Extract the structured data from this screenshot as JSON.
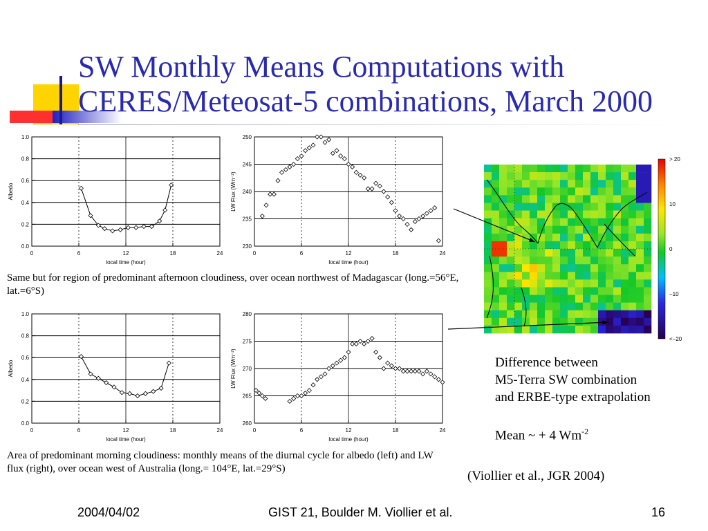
{
  "slide": {
    "title_lines": [
      "SW Monthly Means Computations with",
      "CERES/Meteosat-5 combinations, March 2000"
    ],
    "caption_top": "Same but for region of predominant afternoon cloudiness, over ocean northwest of Madagascar (long.=56°E, lat.=6°S)",
    "caption_bottom": "Area of predominant morning cloudiness: monthly means of the diurnal cycle for albedo (left) and LW flux (right), over ocean west of Australia (long.= 104°E, lat.=29°S)",
    "note_lines": [
      "Difference between",
      "M5-Terra SW combination",
      "and ERBE-type extrapolation"
    ],
    "mean_prefix": "Mean ~ + 4 Wm",
    "mean_exponent": "-2",
    "citation": "(Viollier et al., JGR 2004)",
    "footer": {
      "date": "2004/04/02",
      "center": "GIST 21, Boulder  M. Viollier et  al.",
      "page": "16"
    },
    "colors": {
      "title": "#2a2ab0",
      "deco_yellow": "#ffd400",
      "deco_red": "#ff3030",
      "deco_blue": "#2525c8"
    }
  },
  "colorbar": {
    "labels": [
      "> 20",
      "10",
      "0",
      "−10",
      "<−20"
    ]
  },
  "chart_data": [
    {
      "id": "albedo_top",
      "type": "line",
      "xlabel": "local time (hour)",
      "ylabel": "Albedo",
      "xlim": [
        0,
        24
      ],
      "ylim": [
        0.0,
        1.0
      ],
      "xticks": [
        "0",
        "6",
        "12",
        "18",
        "24"
      ],
      "yticks": [
        "0.0",
        "0.2",
        "0.4",
        "0.6",
        "0.8",
        "1.0"
      ],
      "marker": "diamond",
      "connected": true,
      "grid": "horizontal solid, vertical dotted at 6 and 18",
      "x": [
        6.3,
        7.5,
        8.5,
        9.3,
        10.3,
        11.3,
        12.3,
        13.3,
        14.3,
        15.3,
        16.3,
        17.0,
        17.8
      ],
      "y": [
        0.53,
        0.28,
        0.19,
        0.16,
        0.14,
        0.15,
        0.17,
        0.17,
        0.18,
        0.18,
        0.23,
        0.33,
        0.56
      ]
    },
    {
      "id": "lwflux_top",
      "type": "scatter",
      "xlabel": "local time (hour)",
      "ylabel": "LW Flux  (Wm⁻²)",
      "xlim": [
        0,
        24
      ],
      "ylim": [
        230,
        250
      ],
      "xticks": [
        "0",
        "6",
        "12",
        "18",
        "24"
      ],
      "yticks": [
        "230",
        "235",
        "240",
        "245",
        "250"
      ],
      "marker": "diamond",
      "connected": false,
      "x": [
        1.0,
        1.5,
        2.0,
        2.5,
        3.0,
        3.5,
        4.0,
        4.5,
        5.0,
        5.5,
        6.0,
        6.5,
        7.0,
        7.5,
        8.0,
        8.5,
        9.0,
        9.5,
        10.0,
        10.5,
        11.0,
        11.5,
        12.0,
        12.5,
        13.0,
        13.5,
        14.0,
        14.5,
        15.0,
        15.5,
        16.0,
        16.5,
        17.0,
        17.5,
        18.0,
        18.5,
        19.0,
        19.5,
        20.0,
        20.5,
        21.0,
        21.5,
        22.0,
        22.5,
        23.0,
        23.5
      ],
      "y": [
        235.5,
        237.5,
        239.5,
        239.5,
        242.0,
        243.5,
        244.0,
        244.5,
        245.0,
        246.0,
        246.5,
        247.5,
        248.0,
        248.5,
        250.0,
        250.0,
        249.0,
        249.5,
        247.0,
        247.5,
        246.5,
        246.0,
        245.0,
        244.5,
        243.5,
        243.0,
        242.5,
        240.5,
        240.5,
        241.5,
        241.0,
        240.0,
        239.0,
        238.0,
        236.5,
        235.5,
        235.0,
        234.0,
        233.0,
        234.5,
        235.0,
        235.5,
        236.0,
        236.5,
        237.0,
        231.0
      ]
    },
    {
      "id": "albedo_bottom",
      "type": "line",
      "xlabel": "local time (hour)",
      "ylabel": "Albedo",
      "xlim": [
        0,
        24
      ],
      "ylim": [
        0.0,
        1.0
      ],
      "xticks": [
        "0",
        "6",
        "12",
        "18",
        "24"
      ],
      "yticks": [
        "0.0",
        "0.2",
        "0.4",
        "0.6",
        "0.8",
        "1.0"
      ],
      "marker": "diamond",
      "connected": true,
      "grid": "horizontal solid, vertical dotted at 6 and 18",
      "x": [
        6.3,
        7.5,
        8.5,
        9.5,
        10.5,
        11.5,
        12.5,
        13.5,
        14.5,
        15.5,
        16.5,
        17.5
      ],
      "y": [
        0.61,
        0.45,
        0.41,
        0.37,
        0.33,
        0.28,
        0.27,
        0.25,
        0.27,
        0.29,
        0.32,
        0.55
      ]
    },
    {
      "id": "lwflux_bottom",
      "type": "scatter",
      "xlabel": "local time (hour)",
      "ylabel": "LW Flux  (Wm⁻²)",
      "xlim": [
        0,
        24
      ],
      "ylim": [
        260,
        280
      ],
      "xticks": [
        "0",
        "6",
        "12",
        "18",
        "24"
      ],
      "yticks": [
        "260",
        "265",
        "270",
        "275",
        "280"
      ],
      "marker": "diamond",
      "connected": false,
      "x": [
        0.2,
        0.6,
        1.0,
        1.4,
        4.5,
        5.0,
        5.5,
        6.0,
        6.5,
        7.0,
        7.5,
        8.0,
        8.5,
        9.0,
        9.5,
        10.0,
        10.5,
        11.0,
        11.5,
        12.0,
        12.5,
        13.0,
        13.5,
        14.0,
        14.5,
        15.0,
        15.5,
        16.0,
        16.5,
        17.0,
        17.5,
        18.0,
        18.5,
        19.0,
        19.5,
        20.0,
        20.5,
        21.0,
        21.5,
        22.0,
        22.5,
        23.0,
        23.5,
        24.0
      ],
      "y": [
        266.0,
        265.5,
        265.0,
        264.5,
        264.0,
        264.5,
        265.0,
        265.0,
        265.5,
        266.0,
        267.0,
        268.0,
        268.5,
        269.0,
        270.0,
        270.5,
        271.0,
        271.5,
        272.0,
        273.0,
        274.5,
        274.5,
        275.0,
        274.5,
        275.0,
        275.5,
        273.0,
        272.0,
        270.0,
        271.0,
        270.5,
        270.0,
        270.0,
        269.5,
        269.5,
        269.5,
        269.5,
        269.5,
        269.0,
        269.5,
        269.0,
        268.5,
        268.0,
        267.5
      ]
    }
  ]
}
